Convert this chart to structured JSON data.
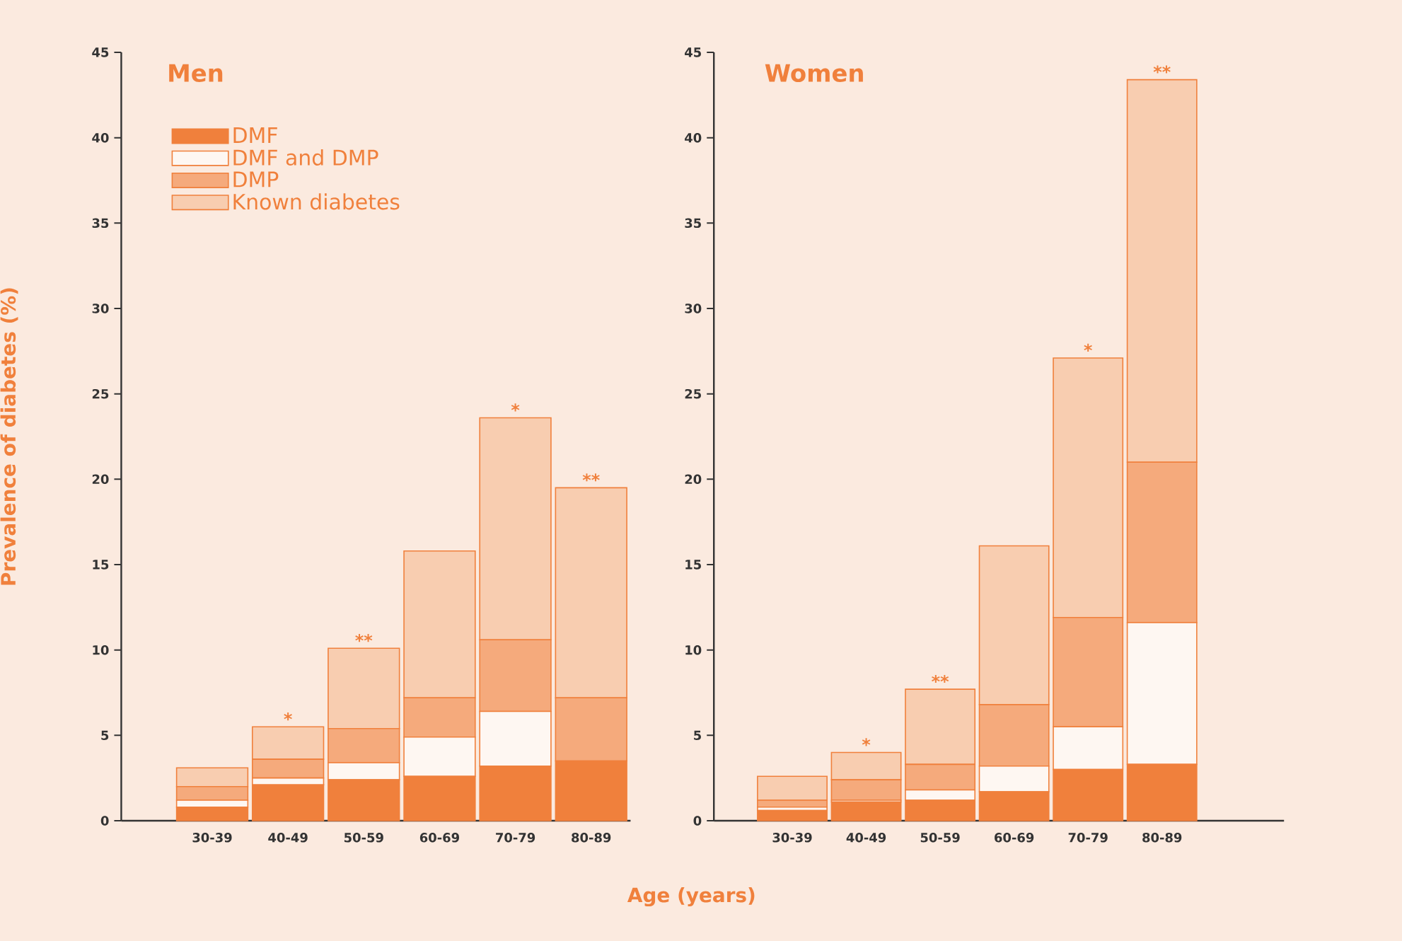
{
  "chart_data": [
    {
      "type": "bar",
      "title": "Men",
      "ylabel": "Prevalence of diabetes (%)",
      "xlabel": "Age (years)",
      "stacked": true,
      "legend": "top left",
      "categories": [
        "30-39",
        "40-49",
        "50-59",
        "60-69",
        "70-79",
        "80-89"
      ],
      "ylim": [
        0,
        45
      ],
      "yticks": [
        0,
        5,
        10,
        15,
        20,
        25,
        30,
        35,
        40,
        45
      ],
      "series": [
        {
          "name": "DMF",
          "color": "#f0803c",
          "values": [
            0.8,
            2.1,
            2.4,
            2.6,
            3.2,
            3.5
          ]
        },
        {
          "name": "DMF and DMP",
          "color": "#fef7f2",
          "values": [
            0.4,
            0.4,
            1.0,
            2.3,
            3.2,
            0
          ]
        },
        {
          "name": "DMP",
          "color": "#f5aa7c",
          "values": [
            0.8,
            1.1,
            2.0,
            2.3,
            4.2,
            3.7
          ]
        },
        {
          "name": "Known diabetes",
          "color": "#f8cdb0",
          "values": [
            1.1,
            1.9,
            4.7,
            8.6,
            13.0,
            12.3
          ]
        }
      ],
      "annotations": [
        {
          "text": "*",
          "x": "40-49",
          "y": 5.5
        },
        {
          "text": "**",
          "x": "50-59",
          "y": 10.1
        },
        {
          "text": "*",
          "x": "70-79",
          "y": 23.6
        },
        {
          "text": "**",
          "x": "80-89",
          "y": 19.5
        }
      ]
    },
    {
      "type": "bar",
      "title": "Women",
      "stacked": true,
      "categories": [
        "30-39",
        "40-49",
        "50-59",
        "60-69",
        "70-79",
        "80-89"
      ],
      "ylim": [
        0,
        45
      ],
      "yticks": [
        0,
        5,
        10,
        15,
        20,
        25,
        30,
        35,
        40,
        45
      ],
      "series": [
        {
          "color": "#f0803c",
          "values": [
            0.6,
            1.1,
            1.2,
            1.7,
            3.0,
            3.3
          ]
        },
        {
          "color": "#fef7f2",
          "values": [
            0.2,
            0.1,
            0.6,
            1.5,
            2.5,
            8.3
          ]
        },
        {
          "color": "#f5aa7c",
          "values": [
            0.4,
            1.2,
            1.5,
            3.6,
            6.4,
            9.4
          ]
        },
        {
          "color": "#f8cdb0",
          "values": [
            1.4,
            1.6,
            4.4,
            9.3,
            15.2,
            22.4
          ]
        }
      ],
      "annotations": [
        {
          "text": "*",
          "x": "40-49",
          "y": 4.0
        },
        {
          "text": "**",
          "x": "50-59",
          "y": 7.7
        },
        {
          "text": "*",
          "x": "70-79",
          "y": 27.1
        },
        {
          "text": "**",
          "x": "80-89",
          "y": 43.4
        }
      ]
    }
  ]
}
